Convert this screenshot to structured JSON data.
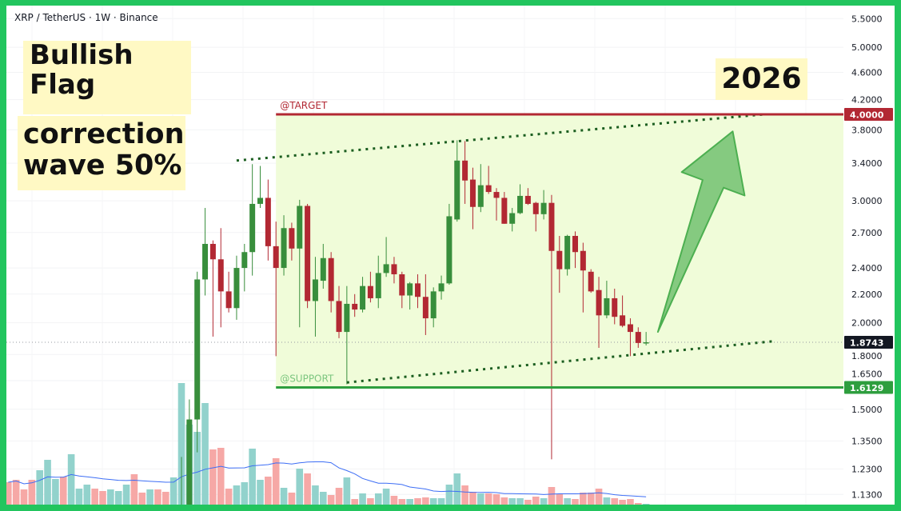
{
  "header": {
    "symbol_title": "XRP / TetherUS · 1W · Binance"
  },
  "annotations": {
    "bullish_line1": "Bullish",
    "bullish_line2": "Flag",
    "correction_line1": "correction",
    "correction_line2": "wave 50%",
    "year": "2026",
    "target_label": "@TARGET",
    "support_label": "@SUPPORT"
  },
  "colors": {
    "border": "#22c55e",
    "up": "#388e3c",
    "down": "#b22833",
    "volume_up": "#92d2cc",
    "volume_down": "#f6a8a6",
    "volume_ma": "#3d6ef5",
    "zone_fill": "#f0fcd9",
    "target": "#b22833",
    "support": "#2e9e3e",
    "trendline": "#1b5e20",
    "arrow": "#4caf50",
    "note_bg": "#fff9c4",
    "last_price_bg": "#131722"
  },
  "chart_data": {
    "type": "candlestick",
    "title": "XRP / TetherUS · 1W · Binance",
    "y_scale": "log",
    "ylim": [
      1.08,
      5.6
    ],
    "grid": true,
    "y_ticks": [
      "5.5000",
      "5.0000",
      "4.6000",
      "4.2000",
      "3.8000",
      "3.4000",
      "3.0000",
      "2.7000",
      "2.4000",
      "2.2000",
      "2.0000",
      "1.8000",
      "1.6500",
      "1.5000",
      "1.3500",
      "1.2300",
      "1.1300"
    ],
    "candles_ohlc": [
      [
        1.07,
        1.28,
        1.07,
        1.09
      ],
      [
        1.07,
        1.55,
        1.06,
        1.45
      ],
      [
        1.45,
        2.37,
        1.3,
        2.31
      ],
      [
        2.31,
        2.93,
        2.19,
        2.6
      ],
      [
        2.6,
        2.63,
        1.91,
        2.47
      ],
      [
        2.47,
        2.74,
        1.97,
        2.22
      ],
      [
        2.22,
        2.37,
        2.07,
        2.1
      ],
      [
        2.1,
        2.5,
        2.02,
        2.4
      ],
      [
        2.4,
        2.6,
        2.22,
        2.53
      ],
      [
        2.53,
        3.39,
        2.34,
        2.97
      ],
      [
        2.97,
        3.37,
        2.93,
        3.03
      ],
      [
        3.03,
        3.22,
        2.46,
        2.58
      ],
      [
        2.58,
        2.8,
        1.79,
        2.4
      ],
      [
        2.4,
        2.86,
        2.34,
        2.74
      ],
      [
        2.74,
        2.79,
        2.46,
        2.56
      ],
      [
        2.56,
        3.01,
        1.97,
        2.95
      ],
      [
        2.95,
        2.97,
        2.1,
        2.15
      ],
      [
        2.15,
        2.49,
        1.91,
        2.31
      ],
      [
        2.3,
        2.6,
        2.24,
        2.48
      ],
      [
        2.48,
        2.53,
        2.07,
        2.15
      ],
      [
        2.15,
        2.26,
        1.9,
        1.94
      ],
      [
        1.94,
        2.26,
        1.63,
        2.13
      ],
      [
        2.13,
        2.2,
        2.04,
        2.09
      ],
      [
        2.09,
        2.33,
        2.07,
        2.26
      ],
      [
        2.26,
        2.37,
        2.14,
        2.17
      ],
      [
        2.17,
        2.5,
        2.1,
        2.36
      ],
      [
        2.36,
        2.66,
        2.33,
        2.43
      ],
      [
        2.43,
        2.49,
        2.28,
        2.35
      ],
      [
        2.35,
        2.37,
        2.1,
        2.19
      ],
      [
        2.19,
        2.29,
        2.09,
        2.28
      ],
      [
        2.28,
        2.35,
        2.1,
        2.18
      ],
      [
        2.18,
        2.35,
        1.92,
        2.03
      ],
      [
        2.03,
        2.25,
        1.97,
        2.22
      ],
      [
        2.22,
        2.34,
        2.16,
        2.28
      ],
      [
        2.28,
        2.97,
        2.27,
        2.85
      ],
      [
        2.82,
        3.67,
        2.8,
        3.43
      ],
      [
        3.43,
        3.66,
        2.97,
        3.21
      ],
      [
        3.22,
        3.35,
        2.73,
        2.94
      ],
      [
        2.94,
        3.39,
        2.89,
        3.16
      ],
      [
        3.16,
        3.37,
        3.07,
        3.09
      ],
      [
        3.09,
        3.13,
        2.81,
        3.03
      ],
      [
        3.03,
        3.09,
        2.78,
        2.78
      ],
      [
        2.78,
        2.93,
        2.71,
        2.88
      ],
      [
        2.88,
        3.17,
        2.87,
        3.05
      ],
      [
        3.05,
        3.13,
        2.96,
        2.97
      ],
      [
        2.98,
        2.99,
        2.71,
        2.87
      ],
      [
        2.87,
        3.11,
        2.82,
        2.98
      ],
      [
        2.98,
        3.06,
        1.27,
        2.54
      ],
      [
        2.54,
        2.67,
        2.21,
        2.39
      ],
      [
        2.39,
        2.68,
        2.34,
        2.67
      ],
      [
        2.67,
        2.71,
        2.4,
        2.53
      ],
      [
        2.54,
        2.61,
        2.07,
        2.38
      ],
      [
        2.37,
        2.39,
        2.21,
        2.22
      ],
      [
        2.23,
        2.33,
        1.84,
        2.05
      ],
      [
        2.05,
        2.3,
        2.03,
        2.17
      ],
      [
        2.17,
        2.24,
        1.99,
        2.04
      ],
      [
        2.05,
        2.19,
        1.97,
        1.98
      ],
      [
        1.99,
        2.03,
        1.79,
        1.94
      ],
      [
        1.94,
        1.97,
        1.84,
        1.87
      ],
      [
        1.868,
        1.94,
        1.855,
        1.8743
      ]
    ],
    "volume_relative": [
      [
        28,
        0
      ],
      [
        31,
        0
      ],
      [
        19,
        0
      ],
      [
        31,
        0
      ],
      [
        43,
        1
      ],
      [
        56,
        1
      ],
      [
        32,
        1
      ],
      [
        35,
        0
      ],
      [
        63,
        1
      ],
      [
        20,
        1
      ],
      [
        25,
        1
      ],
      [
        20,
        0
      ],
      [
        17,
        0
      ],
      [
        19,
        1
      ],
      [
        17,
        1
      ],
      [
        25,
        1
      ],
      [
        38,
        0
      ],
      [
        15,
        0
      ],
      [
        19,
        1
      ],
      [
        19,
        0
      ],
      [
        16,
        0
      ],
      [
        34,
        1
      ],
      [
        152,
        1
      ],
      [
        100,
        1
      ],
      [
        91,
        1
      ],
      [
        127,
        1
      ],
      [
        69,
        0
      ],
      [
        71,
        0
      ],
      [
        20,
        0
      ],
      [
        24,
        1
      ],
      [
        28,
        1
      ],
      [
        70,
        1
      ],
      [
        31,
        1
      ],
      [
        35,
        0
      ],
      [
        58,
        0
      ],
      [
        21,
        1
      ],
      [
        15,
        0
      ],
      [
        45,
        1
      ],
      [
        39,
        0
      ],
      [
        24,
        1
      ],
      [
        16,
        1
      ],
      [
        12,
        0
      ],
      [
        21,
        0
      ],
      [
        34,
        1
      ],
      [
        7,
        0
      ],
      [
        14,
        1
      ],
      [
        8,
        0
      ],
      [
        14,
        1
      ],
      [
        20,
        1
      ],
      [
        11,
        0
      ],
      [
        7,
        0
      ],
      [
        7,
        1
      ],
      [
        8,
        0
      ],
      [
        9,
        0
      ],
      [
        8,
        1
      ],
      [
        8,
        1
      ],
      [
        25,
        1
      ],
      [
        39,
        1
      ],
      [
        24,
        0
      ],
      [
        16,
        0
      ],
      [
        14,
        1
      ],
      [
        14,
        0
      ],
      [
        13,
        0
      ],
      [
        9,
        0
      ],
      [
        8,
        1
      ],
      [
        8,
        1
      ],
      [
        6,
        0
      ],
      [
        10,
        0
      ],
      [
        8,
        1
      ],
      [
        22,
        0
      ],
      [
        13,
        0
      ],
      [
        8,
        1
      ],
      [
        7,
        0
      ],
      [
        15,
        0
      ],
      [
        15,
        0
      ],
      [
        20,
        0
      ],
      [
        9,
        1
      ],
      [
        8,
        0
      ],
      [
        6,
        0
      ],
      [
        7,
        0
      ],
      [
        2,
        0
      ],
      [
        1,
        1
      ]
    ],
    "target": {
      "price": 4.0,
      "label": "4.0000"
    },
    "support": {
      "price": 1.6129,
      "label": "1.6129"
    },
    "last_price": {
      "price": 1.8743,
      "label": "1.8743"
    },
    "upper_trendline": [
      [
        7,
        3.43
      ],
      [
        74,
        4.0
      ]
    ],
    "lower_trendline": [
      [
        21,
        1.64
      ],
      [
        75,
        1.88
      ]
    ],
    "projection_arrow": [
      [
        60.5,
        1.94
      ],
      [
        70,
        3.78
      ]
    ]
  }
}
